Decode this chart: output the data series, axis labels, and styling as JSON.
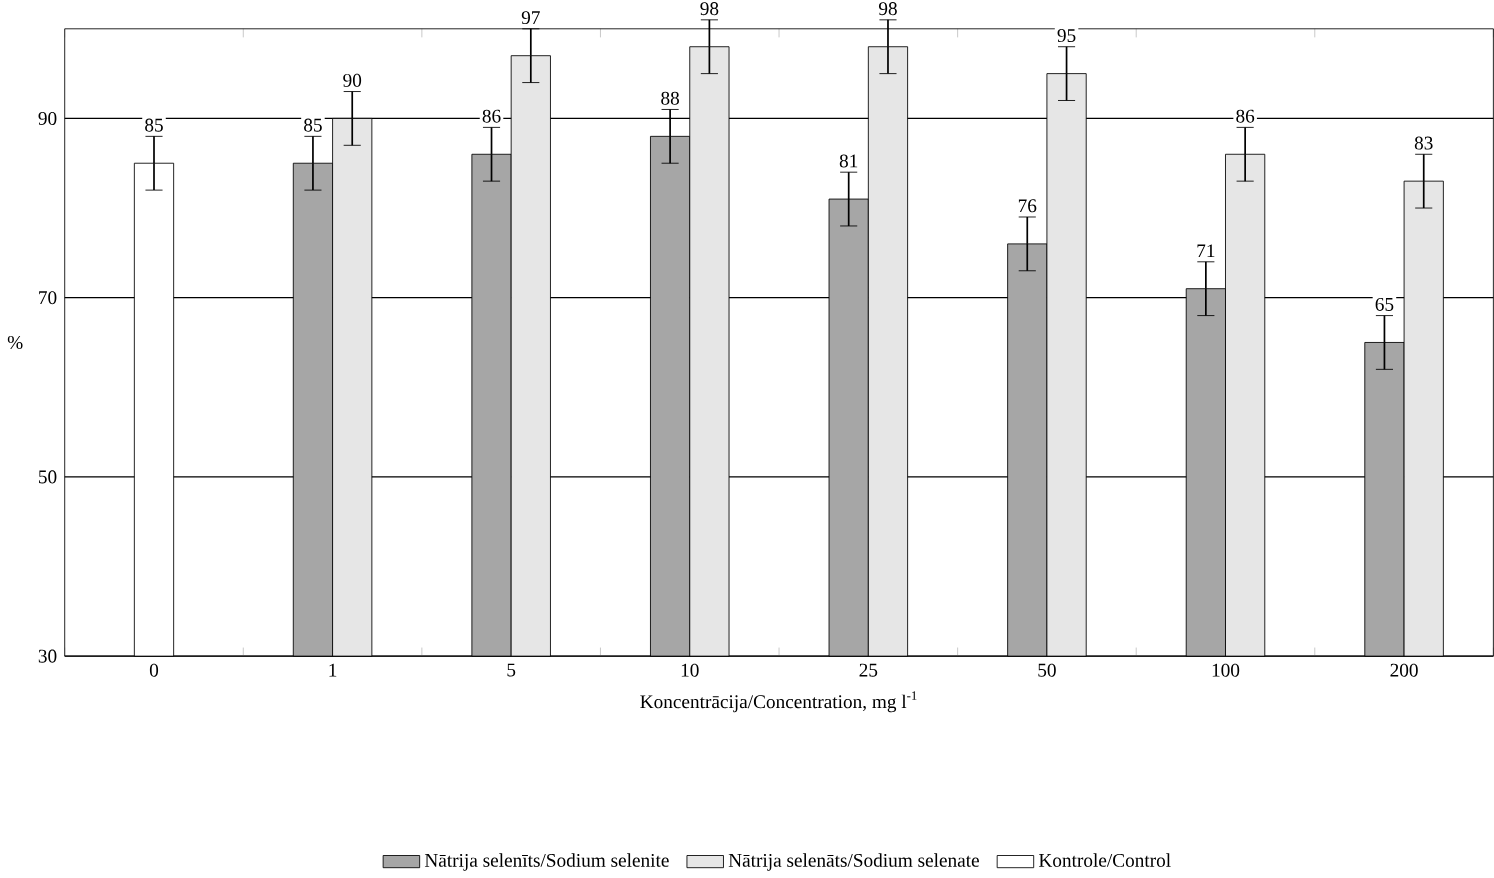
{
  "chart_data": {
    "type": "bar",
    "xlabel": "Koncentrācija/Concentration, mg l$^{-1}$",
    "ylabel": "%",
    "categories": [
      "0",
      "1",
      "5",
      "10",
      "25",
      "50",
      "100",
      "200"
    ],
    "series": [
      {
        "name": "Nātrija selenīts/Sodium selenite",
        "color": "#a6a6a6",
        "values": [
          null,
          85,
          86,
          88,
          81,
          76,
          71,
          65
        ],
        "errors": [
          null,
          3,
          3,
          3,
          3,
          3,
          3,
          3
        ]
      },
      {
        "name": "Nātrija selenāts/Sodium selenate",
        "color": "#e6e6e6",
        "values": [
          null,
          90,
          97,
          98,
          98,
          95,
          86,
          83
        ],
        "errors": [
          null,
          3,
          3,
          3,
          3,
          3,
          3,
          3
        ]
      },
      {
        "name": "Kontrole/Control",
        "color": "#ffffff",
        "values": [
          85,
          null,
          null,
          null,
          null,
          null,
          null,
          null
        ],
        "errors": [
          3,
          null,
          null,
          null,
          null,
          null,
          null,
          null
        ]
      }
    ],
    "ylim": [
      30,
      100
    ],
    "yticks": [
      30,
      50,
      70,
      90
    ],
    "grid": "y",
    "legend": "bottom",
    "data_labels": true
  }
}
